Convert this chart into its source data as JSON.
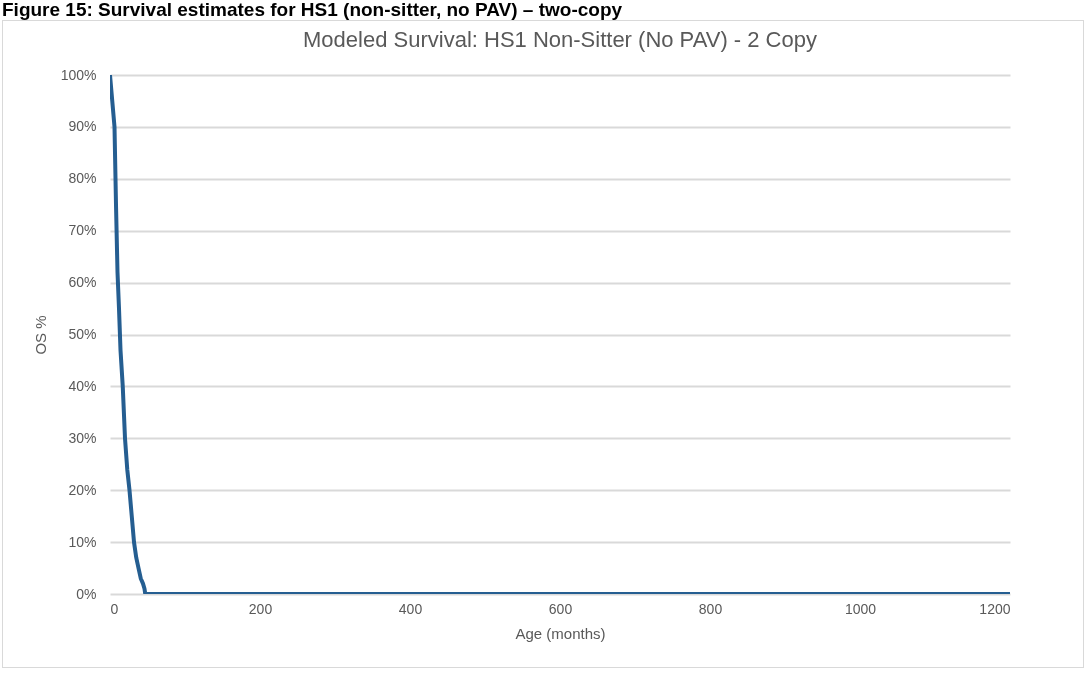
{
  "chart_data": {
    "type": "line",
    "title": "Figure 15: Survival estimates for HS1 (non-sitter, no PAV) – two-copy",
    "subtitle": "Modeled Survival: HS1 Non-Sitter (No PAV) - 2 Copy",
    "xlabel": "Age (months)",
    "ylabel": "OS %",
    "series": [
      {
        "color": "#255e91",
        "x": [
          0,
          3,
          6,
          8,
          10,
          12,
          14,
          17,
          20,
          23,
          26,
          29,
          32,
          35,
          38,
          41,
          44,
          46,
          47,
          100,
          400,
          800,
          1200
        ],
        "values": [
          100,
          95,
          90,
          75,
          62,
          55,
          47,
          40,
          30,
          24,
          20,
          15,
          10,
          7,
          5,
          3,
          2,
          1,
          0,
          0,
          0,
          0,
          0
        ]
      }
    ],
    "xlim": [
      0,
      1200
    ],
    "xticks": [
      0,
      200,
      400,
      600,
      800,
      1000,
      1200
    ],
    "ylim": [
      0,
      100
    ],
    "yticks": [
      {
        "value": 0,
        "label": "0%"
      },
      {
        "value": 10,
        "label": "10%"
      },
      {
        "value": 20,
        "label": "20%"
      },
      {
        "value": 30,
        "label": "30%"
      },
      {
        "value": 40,
        "label": "40%"
      },
      {
        "value": 50,
        "label": "50%"
      },
      {
        "value": 60,
        "label": "60%"
      },
      {
        "value": 70,
        "label": "70%"
      },
      {
        "value": 80,
        "label": "80%"
      },
      {
        "value": 90,
        "label": "90%"
      },
      {
        "value": 100,
        "label": "100%"
      }
    ],
    "grid": "y",
    "marker": "none",
    "line_style": "solid",
    "legend": false
  }
}
